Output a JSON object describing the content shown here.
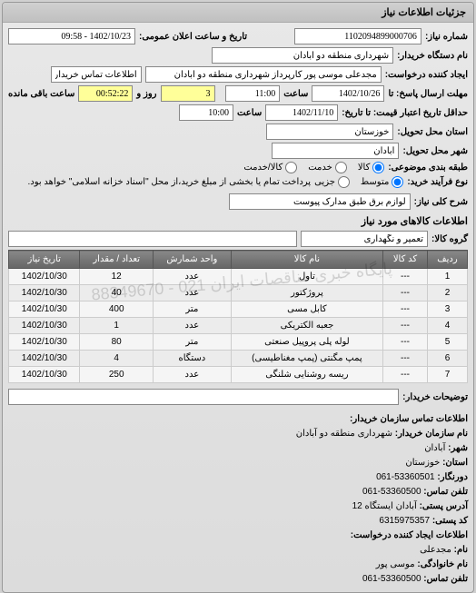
{
  "panel": {
    "title": "جزئیات اطلاعات نیاز"
  },
  "fields": {
    "request_no_label": "شماره نیاز:",
    "request_no": "1102094899000706",
    "public_datetime_label": "تاریخ و ساعت اعلان عمومی:",
    "public_datetime": "1402/10/23 - 09:58",
    "buyer_device_label": "نام دستگاه خریدار:",
    "buyer_device": "شهرداری منطقه دو آبادان",
    "requester_label": "ایجاد کننده درخواست:",
    "requester": "مجدعلی موسی پور کارپرداز شهرداری منطقه دو آبادان",
    "buyer_contact_btn": "اطلاعات تماس خریدار",
    "deadline_send_label": "مهلت ارسال پاسخ: تا",
    "deadline_send_date": "1402/10/26",
    "time_label": "ساعت",
    "deadline_send_time": "11:00",
    "days_remain": "3",
    "days_remain_label": "روز و",
    "time_remain": "00:52:22",
    "time_remain_label": "ساعت باقی مانده",
    "validity_label": "حداقل تاریخ اعتبار قیمت: تا تاریخ:",
    "validity_date": "1402/11/10",
    "validity_time": "10:00",
    "province_label": "استان محل تحویل:",
    "province": "خوزستان",
    "city_label": "شهر محل تحویل:",
    "city": "آبادان",
    "category_label": "طبقه بندی موضوعی:",
    "cat_goods": "کالا",
    "cat_service": "خدمت",
    "cat_goodservice": "کالا/خدمت",
    "process_label": "نوع فرآیند خرید:",
    "proc_mid": "متوسط",
    "proc_small": "جزیی",
    "process_note": "پرداخت تمام یا بخشی از مبلغ خرید،از محل \"اسناد خزانه اسلامی\" خواهد بود.",
    "general_desc_label": "شرح کلی نیاز:",
    "general_desc": "لوازم برق طبق مدارک پیوست",
    "items_title": "اطلاعات کالاهای مورد نیاز",
    "goods_group_label": "گروه کالا:",
    "goods_group": "تعمیر و نگهداری",
    "buyer_note_label": "توضیحات خریدار:"
  },
  "table": {
    "headers": {
      "row": "ردیف",
      "code": "کد کالا",
      "name": "نام کالا",
      "unit": "واحد شمارش",
      "qty": "تعداد / مقدار",
      "date": "تاریخ نیاز"
    },
    "rows": [
      {
        "n": "1",
        "code": "---",
        "name": "تاول",
        "unit": "عدد",
        "qty": "12",
        "date": "1402/10/30"
      },
      {
        "n": "2",
        "code": "---",
        "name": "پروژکتور",
        "unit": "عدد",
        "qty": "40",
        "date": "1402/10/30"
      },
      {
        "n": "3",
        "code": "---",
        "name": "کابل مسی",
        "unit": "متر",
        "qty": "400",
        "date": "1402/10/30"
      },
      {
        "n": "4",
        "code": "---",
        "name": "جعبه الکتریکی",
        "unit": "عدد",
        "qty": "1",
        "date": "1402/10/30"
      },
      {
        "n": "5",
        "code": "---",
        "name": "لوله پلی پروپیل صنعتی",
        "unit": "متر",
        "qty": "80",
        "date": "1402/10/30"
      },
      {
        "n": "6",
        "code": "---",
        "name": "پمپ مگنتی (پمپ مغناطیسی)",
        "unit": "دستگاه",
        "qty": "4",
        "date": "1402/10/30"
      },
      {
        "n": "7",
        "code": "---",
        "name": "ریسه روشنایی شلنگی",
        "unit": "عدد",
        "qty": "250",
        "date": "1402/10/30"
      }
    ]
  },
  "contact": {
    "title": "اطلاعات تماس سازمان خریدار:",
    "org_label": "نام سازمان خریدار:",
    "org": "شهرداری منطقه دو آبادان",
    "city_label": "شهر:",
    "city": "آبادان",
    "province_label": "استان:",
    "province": "خوزستان",
    "fax_label": "دورنگار:",
    "fax": "53360501-061",
    "phone_label": "تلفن تماس:",
    "phone": "53360500-061",
    "address_label": "آدرس پستی:",
    "address": "آبادان ایستگاه 12",
    "postal_label": "کد پستی:",
    "postal": "6315975357",
    "req_creator_title": "اطلاعات ایجاد کننده درخواست:",
    "name_label": "نام:",
    "name": "مجدعلی",
    "lname_label": "نام خانوادگی:",
    "lname": "موسی پور",
    "cphone_label": "تلفن تماس:",
    "cphone": "53360500-061"
  },
  "watermark": "پایگاه خبری مناقصات ایران\n021 - 88349670"
}
